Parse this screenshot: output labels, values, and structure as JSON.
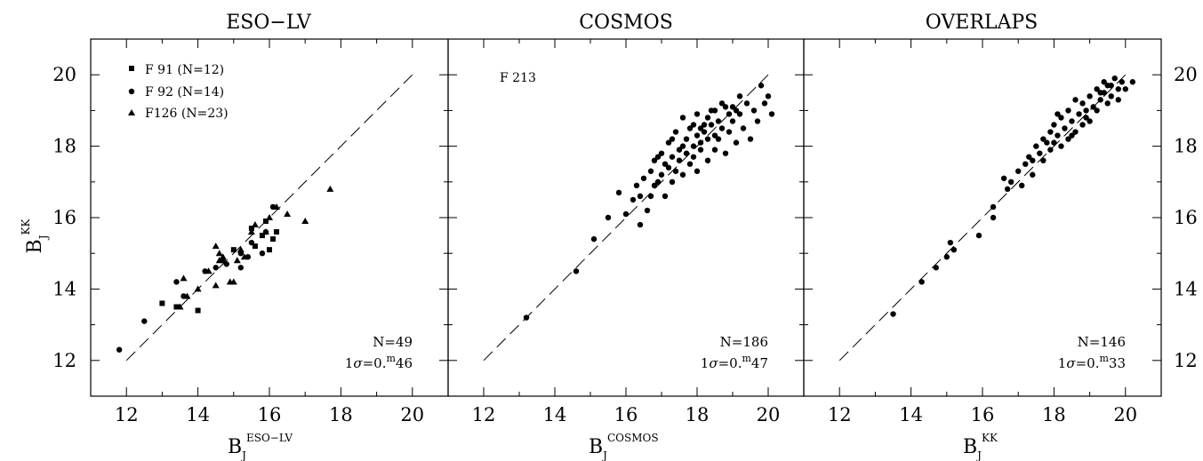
{
  "chart_data": [
    {
      "type": "scatter",
      "title": "ESO−LV",
      "xlabel": "B_J^ESO−LV",
      "ylabel": "B_J^KK",
      "xlim": [
        11,
        21
      ],
      "ylim": [
        11,
        21
      ],
      "xticks": [
        12,
        14,
        16,
        18,
        20
      ],
      "yticks": [
        12,
        14,
        16,
        18,
        20
      ],
      "left_tick_labels": true,
      "right_tick_labels": false,
      "reference_line": {
        "style": "dashed",
        "from": [
          12,
          12
        ],
        "to": [
          20,
          20
        ]
      },
      "legend": [
        "F 91 (N=12)",
        "F 92 (N=14)",
        "F126 (N=23)"
      ],
      "legend_position": "top-left",
      "stats": {
        "n": "N=49",
        "sigma_prefix": "1",
        "sigma_symbol": "σ",
        "sigma_value": "=0.",
        "sigma_sup": "m",
        "sigma_tail": "46"
      },
      "series": [
        {
          "name": "F 91 (N=12)",
          "marker": "square",
          "points": [
            [
              13.0,
              13.6
            ],
            [
              13.4,
              13.5
            ],
            [
              14.0,
              13.4
            ],
            [
              14.7,
              14.8
            ],
            [
              15.0,
              15.1
            ],
            [
              15.5,
              15.7
            ],
            [
              15.6,
              15.2
            ],
            [
              15.8,
              15.5
            ],
            [
              15.9,
              15.9
            ],
            [
              16.1,
              15.4
            ],
            [
              16.0,
              15.1
            ],
            [
              16.2,
              15.6
            ]
          ]
        },
        {
          "name": "F 92 (N=14)",
          "marker": "circle",
          "points": [
            [
              11.8,
              12.3
            ],
            [
              12.5,
              13.1
            ],
            [
              13.4,
              14.2
            ],
            [
              13.6,
              13.8
            ],
            [
              14.2,
              14.5
            ],
            [
              14.5,
              14.6
            ],
            [
              14.8,
              14.7
            ],
            [
              15.2,
              14.6
            ],
            [
              15.4,
              14.9
            ],
            [
              15.5,
              15.3
            ],
            [
              15.8,
              15.0
            ],
            [
              15.9,
              15.6
            ],
            [
              16.1,
              16.3
            ],
            [
              15.2,
              15.0
            ]
          ]
        },
        {
          "name": "F126 (N=23)",
          "marker": "triangle",
          "points": [
            [
              13.5,
              13.5
            ],
            [
              13.6,
              14.3
            ],
            [
              13.7,
              13.8
            ],
            [
              14.0,
              14.0
            ],
            [
              14.3,
              14.5
            ],
            [
              14.5,
              15.2
            ],
            [
              14.6,
              15.0
            ],
            [
              14.6,
              14.8
            ],
            [
              14.7,
              14.9
            ],
            [
              14.5,
              14.1
            ],
            [
              14.9,
              14.2
            ],
            [
              15.0,
              14.2
            ],
            [
              15.1,
              14.8
            ],
            [
              15.2,
              15.1
            ],
            [
              15.3,
              14.9
            ],
            [
              15.5,
              15.6
            ],
            [
              15.6,
              15.8
            ],
            [
              15.9,
              15.6
            ],
            [
              16.0,
              16.0
            ],
            [
              16.2,
              16.3
            ],
            [
              16.5,
              16.1
            ],
            [
              17.0,
              15.9
            ],
            [
              17.7,
              16.8
            ]
          ]
        }
      ]
    },
    {
      "type": "scatter",
      "title": "COSMOS",
      "xlabel": "B_J^COSMOS",
      "ylabel": "",
      "xlim": [
        11,
        21
      ],
      "ylim": [
        11,
        21
      ],
      "xticks": [
        12,
        14,
        16,
        18,
        20
      ],
      "yticks": [
        12,
        14,
        16,
        18,
        20
      ],
      "left_tick_labels": false,
      "right_tick_labels": false,
      "reference_line": {
        "style": "dashed",
        "from": [
          12,
          12
        ],
        "to": [
          20,
          20
        ]
      },
      "annotation": "F 213",
      "stats": {
        "n": "N=186",
        "sigma_prefix": "1",
        "sigma_symbol": "σ",
        "sigma_value": "=0.",
        "sigma_sup": "m",
        "sigma_tail": "47"
      },
      "series": [
        {
          "name": "F 213",
          "marker": "circle",
          "points": [
            [
              13.2,
              13.2
            ],
            [
              14.6,
              14.5
            ],
            [
              15.1,
              15.4
            ],
            [
              15.5,
              16.0
            ],
            [
              15.8,
              16.7
            ],
            [
              16.0,
              16.1
            ],
            [
              16.2,
              16.5
            ],
            [
              16.3,
              16.9
            ],
            [
              16.4,
              15.8
            ],
            [
              16.4,
              16.6
            ],
            [
              16.5,
              17.1
            ],
            [
              16.6,
              16.2
            ],
            [
              16.7,
              17.3
            ],
            [
              16.7,
              16.6
            ],
            [
              16.8,
              17.6
            ],
            [
              16.8,
              16.9
            ],
            [
              16.9,
              17.0
            ],
            [
              17.0,
              17.8
            ],
            [
              17.0,
              17.2
            ],
            [
              17.1,
              16.6
            ],
            [
              17.1,
              17.5
            ],
            [
              17.2,
              18.1
            ],
            [
              17.2,
              17.4
            ],
            [
              17.3,
              17.0
            ],
            [
              17.3,
              17.7
            ],
            [
              17.4,
              17.3
            ],
            [
              17.4,
              18.4
            ],
            [
              17.5,
              17.9
            ],
            [
              17.5,
              17.6
            ],
            [
              17.6,
              18.8
            ],
            [
              17.6,
              17.2
            ],
            [
              17.7,
              18.2
            ],
            [
              17.7,
              17.8
            ],
            [
              17.8,
              17.5
            ],
            [
              17.8,
              18.5
            ],
            [
              17.9,
              18.0
            ],
            [
              17.9,
              17.7
            ],
            [
              18.0,
              18.9
            ],
            [
              18.0,
              18.3
            ],
            [
              18.0,
              17.3
            ],
            [
              18.1,
              18.1
            ],
            [
              18.1,
              17.9
            ],
            [
              18.2,
              18.6
            ],
            [
              18.2,
              18.4
            ],
            [
              18.3,
              17.6
            ],
            [
              18.3,
              18.2
            ],
            [
              18.4,
              19.0
            ],
            [
              18.4,
              18.6
            ],
            [
              18.5,
              18.3
            ],
            [
              18.5,
              17.9
            ],
            [
              18.6,
              18.7
            ],
            [
              18.6,
              18.2
            ],
            [
              18.7,
              19.2
            ],
            [
              18.7,
              18.5
            ],
            [
              18.8,
              17.8
            ],
            [
              18.9,
              18.9
            ],
            [
              18.9,
              18.4
            ],
            [
              19.0,
              19.1
            ],
            [
              19.0,
              18.7
            ],
            [
              19.1,
              18.1
            ],
            [
              19.2,
              19.4
            ],
            [
              19.2,
              18.9
            ],
            [
              19.3,
              18.5
            ],
            [
              19.4,
              19.2
            ],
            [
              19.5,
              18.2
            ],
            [
              19.6,
              19.0
            ],
            [
              19.7,
              18.7
            ],
            [
              19.8,
              19.7
            ],
            [
              19.9,
              19.2
            ],
            [
              20.0,
              19.4
            ],
            [
              20.1,
              18.9
            ],
            [
              17.6,
              18.0
            ],
            [
              17.9,
              18.6
            ],
            [
              18.1,
              18.5
            ],
            [
              18.3,
              18.8
            ],
            [
              18.5,
              19.0
            ],
            [
              18.8,
              19.1
            ],
            [
              19.1,
              19.0
            ],
            [
              17.3,
              18.2
            ],
            [
              16.9,
              17.7
            ]
          ]
        }
      ]
    },
    {
      "type": "scatter",
      "title": "OVERLAPS",
      "xlabel": "B_J^KK",
      "ylabel": "",
      "xlim": [
        11,
        21
      ],
      "ylim": [
        11,
        21
      ],
      "xticks": [
        12,
        14,
        16,
        18,
        20
      ],
      "yticks": [
        12,
        14,
        16,
        18,
        20
      ],
      "left_tick_labels": false,
      "right_tick_labels": true,
      "reference_line": {
        "style": "dashed",
        "from": [
          12,
          12
        ],
        "to": [
          20,
          20
        ]
      },
      "stats": {
        "n": "N=146",
        "sigma_prefix": "1",
        "sigma_symbol": "σ",
        "sigma_value": "=0.",
        "sigma_sup": "m",
        "sigma_tail": "33"
      },
      "series": [
        {
          "name": "",
          "marker": "circle",
          "points": [
            [
              13.5,
              13.3
            ],
            [
              14.3,
              14.2
            ],
            [
              14.7,
              14.6
            ],
            [
              15.0,
              14.9
            ],
            [
              15.1,
              15.3
            ],
            [
              15.2,
              15.1
            ],
            [
              15.9,
              15.5
            ],
            [
              16.3,
              16.0
            ],
            [
              16.3,
              16.3
            ],
            [
              16.6,
              17.1
            ],
            [
              16.7,
              16.8
            ],
            [
              16.8,
              17.0
            ],
            [
              17.0,
              17.3
            ],
            [
              17.1,
              16.9
            ],
            [
              17.2,
              17.5
            ],
            [
              17.3,
              17.7
            ],
            [
              17.4,
              17.6
            ],
            [
              17.5,
              18.0
            ],
            [
              17.6,
              17.8
            ],
            [
              17.7,
              18.2
            ],
            [
              17.7,
              17.6
            ],
            [
              17.8,
              18.1
            ],
            [
              17.9,
              18.4
            ],
            [
              17.9,
              17.9
            ],
            [
              18.0,
              18.6
            ],
            [
              18.0,
              18.1
            ],
            [
              18.1,
              18.3
            ],
            [
              18.2,
              18.8
            ],
            [
              18.2,
              18.0
            ],
            [
              18.3,
              18.5
            ],
            [
              18.4,
              19.0
            ],
            [
              18.4,
              18.2
            ],
            [
              18.5,
              18.7
            ],
            [
              18.6,
              18.4
            ],
            [
              18.6,
              19.3
            ],
            [
              18.7,
              18.9
            ],
            [
              18.8,
              18.6
            ],
            [
              18.8,
              19.2
            ],
            [
              18.9,
              18.8
            ],
            [
              19.0,
              19.4
            ],
            [
              19.0,
              18.7
            ],
            [
              19.1,
              19.1
            ],
            [
              19.2,
              19.6
            ],
            [
              19.2,
              19.0
            ],
            [
              19.3,
              19.3
            ],
            [
              19.4,
              19.8
            ],
            [
              19.4,
              19.5
            ],
            [
              19.5,
              19.2
            ],
            [
              19.6,
              19.7
            ],
            [
              19.6,
              19.4
            ],
            [
              19.7,
              19.9
            ],
            [
              19.8,
              19.6
            ],
            [
              19.8,
              19.3
            ],
            [
              19.9,
              19.8
            ],
            [
              20.0,
              19.6
            ],
            [
              20.2,
              19.8
            ],
            [
              17.4,
              17.2
            ],
            [
              18.1,
              18.9
            ],
            [
              18.5,
              18.3
            ],
            [
              18.9,
              19.0
            ],
            [
              19.3,
              19.5
            ],
            [
              19.5,
              19.7
            ]
          ]
        }
      ]
    }
  ]
}
